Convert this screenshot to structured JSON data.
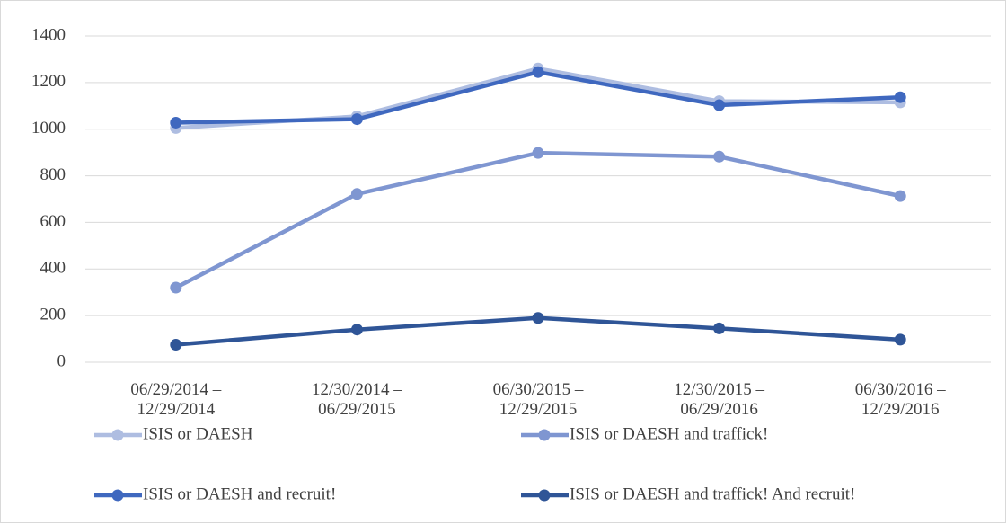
{
  "chart_data": {
    "type": "line",
    "categories": [
      "06/29/2014 –\n12/29/2014",
      "12/30/2014 –\n06/29/2015",
      "06/30/2015 –\n12/29/2015",
      "12/30/2015 –\n06/29/2016",
      "06/30/2016 –\n12/29/2016"
    ],
    "series": [
      {
        "name": "ISIS or DAESH",
        "color": "#aebde1",
        "values": [
          1005,
          1055,
          1260,
          1120,
          1115
        ]
      },
      {
        "name": "ISIS or DAESH and traffick!",
        "color": "#7f96d1",
        "values": [
          320,
          722,
          898,
          882,
          713
        ]
      },
      {
        "name": "ISIS or DAESH and recruit!",
        "color": "#3f68bf",
        "values": [
          1028,
          1043,
          1245,
          1103,
          1137
        ]
      },
      {
        "name": "ISIS or DAESH and traffick! And recruit!",
        "color": "#2f5597",
        "values": [
          75,
          140,
          190,
          145,
          97
        ]
      }
    ],
    "ylim": [
      0,
      1400
    ],
    "yticks": [
      0,
      200,
      400,
      600,
      800,
      1000,
      1200,
      1400
    ],
    "grid": true,
    "legend": "bottom"
  }
}
